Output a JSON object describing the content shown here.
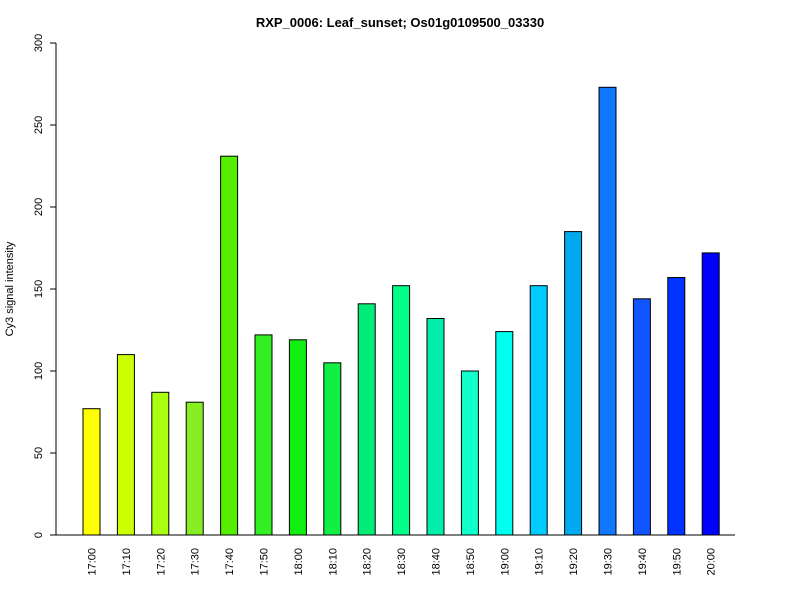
{
  "chart_data": {
    "type": "bar",
    "title": "RXP_0006: Leaf_sunset; Os01g0109500_03330",
    "xlabel": "",
    "ylabel": "Cy3 signal intensity",
    "ylim": [
      0,
      300
    ],
    "yticks": [
      0,
      50,
      100,
      150,
      200,
      250,
      300
    ],
    "categories": [
      "17:00",
      "17:10",
      "17:20",
      "17:30",
      "17:40",
      "17:50",
      "18:00",
      "18:10",
      "18:20",
      "18:30",
      "18:40",
      "18:50",
      "19:00",
      "19:10",
      "19:20",
      "19:30",
      "19:40",
      "19:50",
      "20:00"
    ],
    "values": [
      77,
      110,
      87,
      81,
      231,
      122,
      119,
      105,
      141,
      152,
      132,
      100,
      124,
      152,
      185,
      273,
      144,
      157,
      172
    ],
    "colors": [
      "#ffff00",
      "#ccff00",
      "#aaff11",
      "#88ee22",
      "#55ee00",
      "#33ee22",
      "#11ee11",
      "#11ee44",
      "#00ee77",
      "#00ff88",
      "#00eeaa",
      "#11ffcc",
      "#00ffee",
      "#00ccff",
      "#00aaee",
      "#1177ff",
      "#1155ff",
      "#0033ff",
      "#0000ff"
    ],
    "grid": false,
    "legend": "none"
  }
}
